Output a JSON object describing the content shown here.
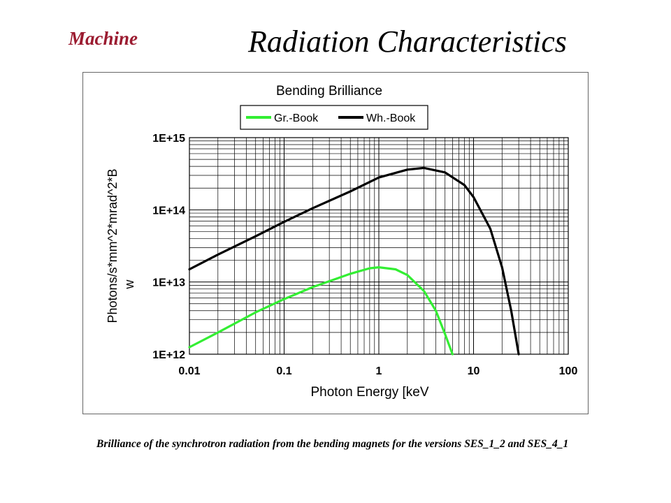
{
  "header": {
    "section_label": "Machine",
    "title": "Radiation Characteristics"
  },
  "caption": "Brilliance of the synchrotron radiation from the bending magnets for the versions SES_1_2 and SES_4_1",
  "colors": {
    "series_1": "#33ee33",
    "series_2": "#000000",
    "section_label": "#9b1b30"
  },
  "chart_data": {
    "type": "line",
    "title": "Bending Brilliance",
    "xlabel": "Photon Energy [keV",
    "ylabel": "Photons/s*mm^2*mrad^2*B w",
    "x_scale": "log",
    "y_scale": "log",
    "xlim": [
      0.01,
      100
    ],
    "ylim": [
      1000000000000.0,
      1000000000000000.0
    ],
    "x_ticks": [
      "0.01",
      "0.1",
      "1",
      "10",
      "100"
    ],
    "y_ticks": [
      "1E+12",
      "1E+13",
      "1E+14",
      "1E+15"
    ],
    "grid": true,
    "legend_position": "top",
    "series": [
      {
        "name": "Gr.-Book",
        "x": [
          0.01,
          0.02,
          0.05,
          0.1,
          0.2,
          0.5,
          0.8,
          1.0,
          1.5,
          2.0,
          3.0,
          4.0,
          5.0,
          6.0
        ],
        "y": [
          1250000000000.0,
          2000000000000.0,
          3800000000000.0,
          5800000000000.0,
          8500000000000.0,
          13000000000000.0,
          15500000000000.0,
          16000000000000.0,
          15000000000000.0,
          12500000000000.0,
          7500000000000.0,
          4000000000000.0,
          1900000000000.0,
          1000000000000.0
        ]
      },
      {
        "name": "Wh.-Book",
        "x": [
          0.01,
          0.02,
          0.05,
          0.1,
          0.2,
          0.5,
          1.0,
          2.0,
          3.0,
          5.0,
          8.0,
          10.0,
          15.0,
          20.0,
          25.0,
          30.0
        ],
        "y": [
          15000000000000.0,
          24000000000000.0,
          43000000000000.0,
          68000000000000.0,
          105000000000000.0,
          180000000000000.0,
          280000000000000.0,
          360000000000000.0,
          380000000000000.0,
          330000000000000.0,
          220000000000000.0,
          150000000000000.0,
          55000000000000.0,
          16000000000000.0,
          4000000000000.0,
          1000000000000.0
        ]
      }
    ]
  }
}
